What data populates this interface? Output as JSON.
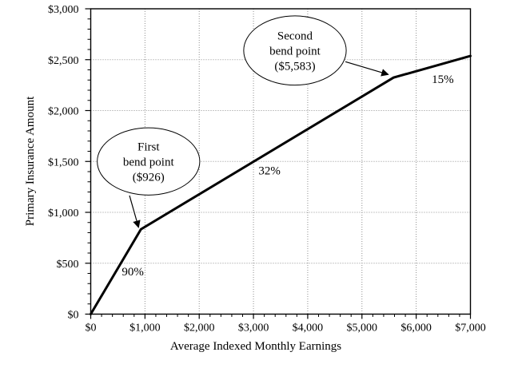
{
  "figure": {
    "background": "#ffffff",
    "text_color": "#000000"
  },
  "chart_data": {
    "type": "line",
    "title": "",
    "xlabel": "Average Indexed Monthly Earnings",
    "ylabel": "Primary Insurance Amount",
    "xlim": [
      0,
      7000
    ],
    "ylim": [
      0,
      3000
    ],
    "x_ticks": [
      0,
      1000,
      2000,
      3000,
      4000,
      5000,
      6000,
      7000
    ],
    "x_tick_labels": [
      "$0",
      "$1,000",
      "$2,000",
      "$3,000",
      "$4,000",
      "$5,000",
      "$6,000",
      "$7,000"
    ],
    "y_ticks": [
      0,
      500,
      1000,
      1500,
      2000,
      2500,
      3000
    ],
    "y_tick_labels": [
      "$0",
      "$500",
      "$1,000",
      "$1,500",
      "$2,000",
      "$2,500",
      "$3,000"
    ],
    "x_minor_step": 200,
    "y_minor_step": 100,
    "grid": "dotted",
    "grid_color": "#8f8f8f",
    "line_color": "#000000",
    "legend": "none",
    "series": [
      {
        "name": "Primary Insurance Amount",
        "points": [
          [
            0,
            0
          ],
          [
            926,
            833.4
          ],
          [
            5583,
            2323.6
          ],
          [
            7000,
            2536.2
          ]
        ]
      }
    ],
    "segment_labels": [
      {
        "text": "90%",
        "x": 775,
        "y": 420
      },
      {
        "text": "32%",
        "x": 3295,
        "y": 1410
      },
      {
        "text": "15%",
        "x": 6490,
        "y": 2310
      }
    ],
    "annotations": [
      {
        "name": "first-bend-point",
        "lines": [
          "First",
          "bend point",
          "($926)"
        ],
        "ellipse_center": [
          1065,
          1500
        ],
        "ellipse_rx": 945,
        "ellipse_ry": 330,
        "arrow_from": [
          715,
          1165
        ],
        "arrow_to": [
          880,
          855
        ]
      },
      {
        "name": "second-bend-point",
        "lines": [
          "Second",
          "bend point",
          "($5,583)"
        ],
        "ellipse_center": [
          3765,
          2590
        ],
        "ellipse_rx": 945,
        "ellipse_ry": 340,
        "arrow_from": [
          4695,
          2480
        ],
        "arrow_to": [
          5480,
          2355
        ]
      }
    ]
  }
}
